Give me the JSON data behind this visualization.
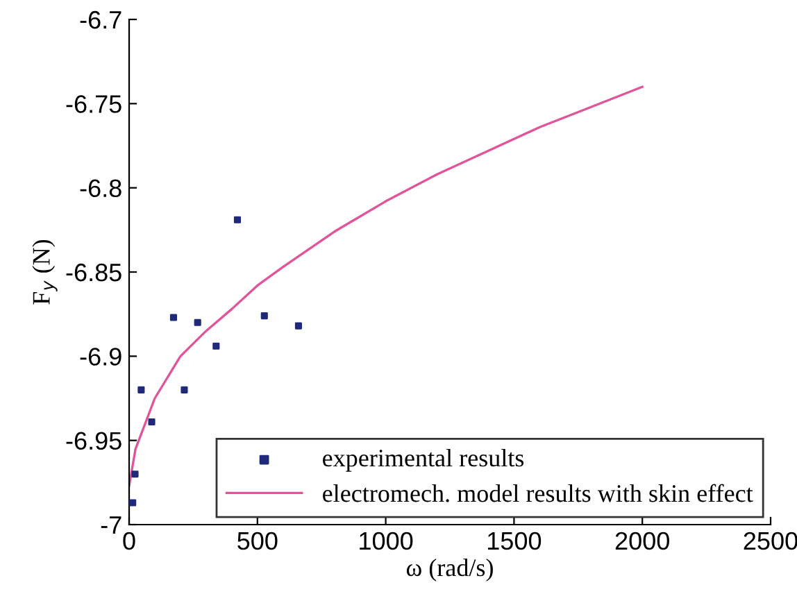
{
  "chart_data": {
    "type": "scatter",
    "xlabel": "ω (rad/s)",
    "ylabel": "F$_{y}$ (N)",
    "xlim": [
      0,
      2500
    ],
    "xticks": [
      0,
      500,
      1000,
      1500,
      2000,
      2500
    ],
    "ylim": [
      -7,
      -6.7
    ],
    "yticks": [
      -7,
      -6.95,
      -6.9,
      -6.85,
      -6.8,
      -6.75,
      -6.7
    ],
    "grid": false,
    "legend": "bottom right",
    "series": [
      {
        "name": "experimental results",
        "marker": "square",
        "color": "#1f2a7a",
        "x": [
          14,
          23,
          47,
          88,
          173,
          215,
          267,
          339,
          422,
          527,
          660
        ],
        "values": [
          -6.987,
          -6.97,
          -6.92,
          -6.939,
          -6.877,
          -6.92,
          -6.88,
          -6.894,
          -6.819,
          -6.876,
          -6.882
        ]
      },
      {
        "name": "electromech. model results with skin effect",
        "type": "line",
        "line_style": "solid",
        "color": "#e0559a",
        "x": [
          0,
          25,
          50,
          100,
          200,
          300,
          400,
          500,
          600,
          800,
          1000,
          1200,
          1400,
          1600,
          1800,
          2000
        ],
        "values": [
          -6.977,
          -6.955,
          -6.945,
          -6.925,
          -6.9,
          -6.885,
          -6.872,
          -6.858,
          -6.847,
          -6.826,
          -6.808,
          -6.792,
          -6.778,
          -6.764,
          -6.752,
          -6.74
        ]
      }
    ]
  }
}
